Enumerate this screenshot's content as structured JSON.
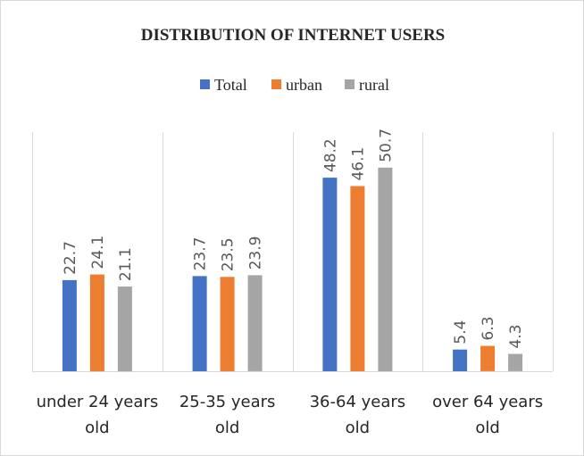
{
  "chart_data": {
    "type": "bar",
    "title": "DISTRIBUTION OF INTERNET USERS",
    "categories": [
      [
        "under 24 years",
        "old"
      ],
      [
        "25-35 years",
        "old"
      ],
      [
        "36-64 years",
        "old"
      ],
      [
        "over 64 years",
        "old"
      ]
    ],
    "series": [
      {
        "name": "Total",
        "color": "#4472c4",
        "values": [
          22.7,
          23.7,
          48.2,
          5.4
        ]
      },
      {
        "name": "urban",
        "color": "#ed7d31",
        "values": [
          24.1,
          23.5,
          46.1,
          6.3
        ]
      },
      {
        "name": "rural",
        "color": "#a5a5a5",
        "values": [
          21.1,
          23.9,
          50.7,
          4.3
        ]
      }
    ],
    "ylim": [
      0,
      60
    ],
    "legend_position": "top",
    "data_labels": true,
    "vertical_gridlines": true,
    "grid_color": "#d9d9d9"
  }
}
